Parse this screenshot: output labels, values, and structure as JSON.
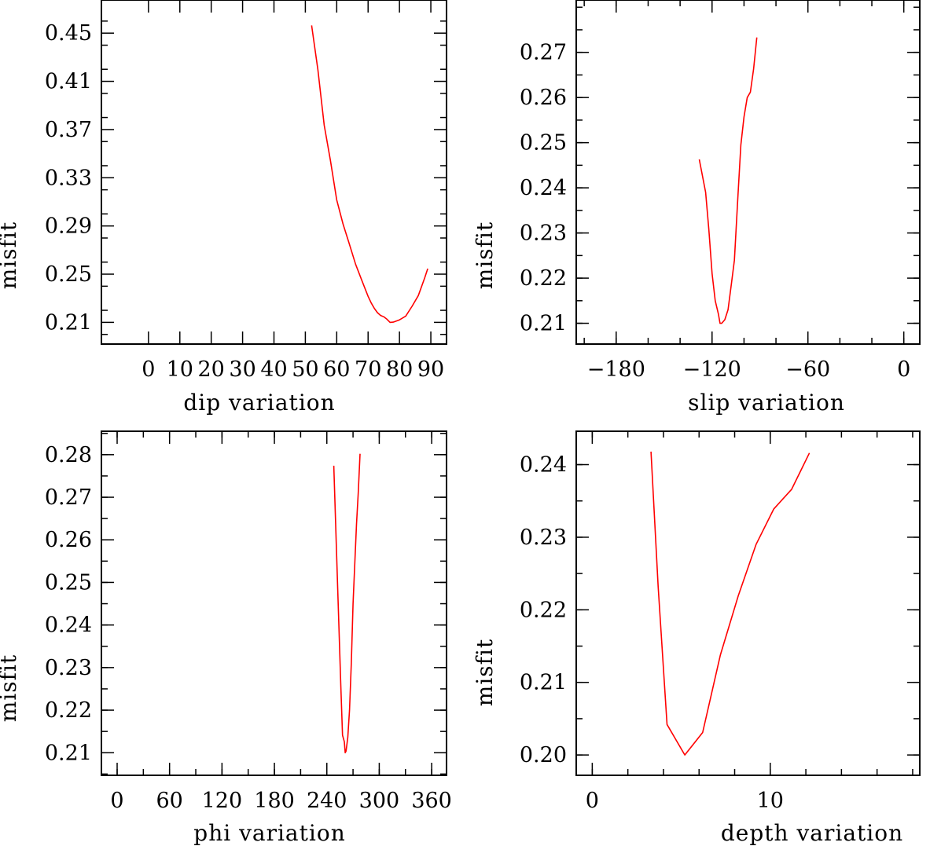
{
  "chart_data": [
    {
      "id": "dip",
      "type": "line",
      "xlabel": "dip    variation",
      "ylabel": "misfit",
      "xlim": [
        -15,
        95
      ],
      "ylim": [
        0.192,
        0.4775
      ],
      "xticks": [
        0,
        10,
        20,
        30,
        40,
        50,
        60,
        70,
        80,
        90
      ],
      "xtick_labels": [
        "0",
        "10",
        "20",
        "30",
        "40",
        "50",
        "60",
        "70",
        "80",
        "90"
      ],
      "yticks": [
        0.21,
        0.25,
        0.29,
        0.33,
        0.37,
        0.41,
        0.45
      ],
      "ytick_labels": [
        "0.21",
        "0.25",
        "0.29",
        "0.33",
        "0.37",
        "0.41",
        "0.45"
      ],
      "series": [
        {
          "color": "#ff0000",
          "x": [
            52,
            54,
            56,
            58,
            60,
            62,
            64,
            66,
            68,
            70,
            71,
            72,
            73,
            74,
            75,
            76,
            77,
            78,
            80,
            82,
            84,
            86,
            88,
            89
          ],
          "y": [
            0.4564,
            0.4195,
            0.3736,
            0.3444,
            0.3117,
            0.2917,
            0.2752,
            0.2583,
            0.2449,
            0.2316,
            0.2261,
            0.2216,
            0.218,
            0.2157,
            0.2146,
            0.2126,
            0.21,
            0.2102,
            0.2121,
            0.2152,
            0.2233,
            0.2322,
            0.2467,
            0.2546
          ]
        }
      ]
    },
    {
      "id": "slip",
      "type": "line",
      "xlabel": "slip    variation",
      "ylabel": "misfit",
      "xlim": [
        -205,
        10
      ],
      "ylim": [
        0.2054,
        0.2816
      ],
      "xticks": [
        -180,
        -120,
        -60,
        0
      ],
      "xtick_labels": [
        "−180",
        "−120",
        "−60",
        "0"
      ],
      "yticks": [
        0.21,
        0.22,
        0.23,
        0.24,
        0.25,
        0.26,
        0.27
      ],
      "ytick_labels": [
        "0.21",
        "0.22",
        "0.23",
        "0.24",
        "0.25",
        "0.26",
        "0.27"
      ],
      "series": [
        {
          "color": "#ff0000",
          "x": [
            -128,
            -124,
            -122,
            -120,
            -118,
            -116,
            -115,
            -114,
            -112,
            -110,
            -108,
            -106,
            -104,
            -102,
            -100,
            -98,
            -96,
            -94,
            -92
          ],
          "y": [
            0.2463,
            0.239,
            0.2307,
            0.221,
            0.215,
            0.212,
            0.21,
            0.21,
            0.2108,
            0.213,
            0.2185,
            0.224,
            0.237,
            0.2495,
            0.2557,
            0.26,
            0.2612,
            0.2663,
            0.2733
          ]
        }
      ]
    },
    {
      "id": "phi",
      "type": "line",
      "xlabel": "phi    variation",
      "ylabel": "misfit",
      "xlim": [
        -18,
        377
      ],
      "ylim": [
        0.2047,
        0.2855
      ],
      "xticks": [
        0,
        60,
        120,
        180,
        240,
        300,
        360
      ],
      "xtick_labels": [
        "0",
        "60",
        "120",
        "180",
        "240",
        "300",
        "360"
      ],
      "yticks": [
        0.21,
        0.22,
        0.23,
        0.24,
        0.25,
        0.26,
        0.27,
        0.28
      ],
      "ytick_labels": [
        "0.21",
        "0.22",
        "0.23",
        "0.24",
        "0.25",
        "0.26",
        "0.27",
        "0.28"
      ],
      "series": [
        {
          "color": "#ff0000",
          "x": [
            248,
            252,
            256,
            258,
            260,
            261,
            262,
            264,
            266,
            268,
            270,
            272,
            274,
            276,
            278
          ],
          "y": [
            0.2774,
            0.2512,
            0.2259,
            0.2141,
            0.2126,
            0.21,
            0.2104,
            0.2136,
            0.22,
            0.2311,
            0.245,
            0.2544,
            0.2637,
            0.271,
            0.2802
          ]
        }
      ]
    },
    {
      "id": "depth",
      "type": "line",
      "xlabel": "depth   variation",
      "ylabel": "misfit",
      "xlim": [
        -0.9,
        18.4
      ],
      "ylim": [
        0.1972,
        0.2446
      ],
      "xticks": [
        0,
        10
      ],
      "xtick_labels": [
        "0",
        "10"
      ],
      "yticks": [
        0.2,
        0.21,
        0.22,
        0.23,
        0.24
      ],
      "ytick_labels": [
        "0.20",
        "0.21",
        "0.22",
        "0.23",
        "0.24"
      ],
      "series": [
        {
          "color": "#ff0000",
          "x": [
            3.3,
            3.7,
            4.2,
            5.2,
            6.2,
            7.2,
            8.2,
            9.2,
            10.2,
            11.2,
            12.2
          ],
          "y": [
            0.2418,
            0.2232,
            0.2042,
            0.2,
            0.2031,
            0.2138,
            0.2219,
            0.229,
            0.2339,
            0.2366,
            0.2416
          ]
        }
      ]
    }
  ]
}
